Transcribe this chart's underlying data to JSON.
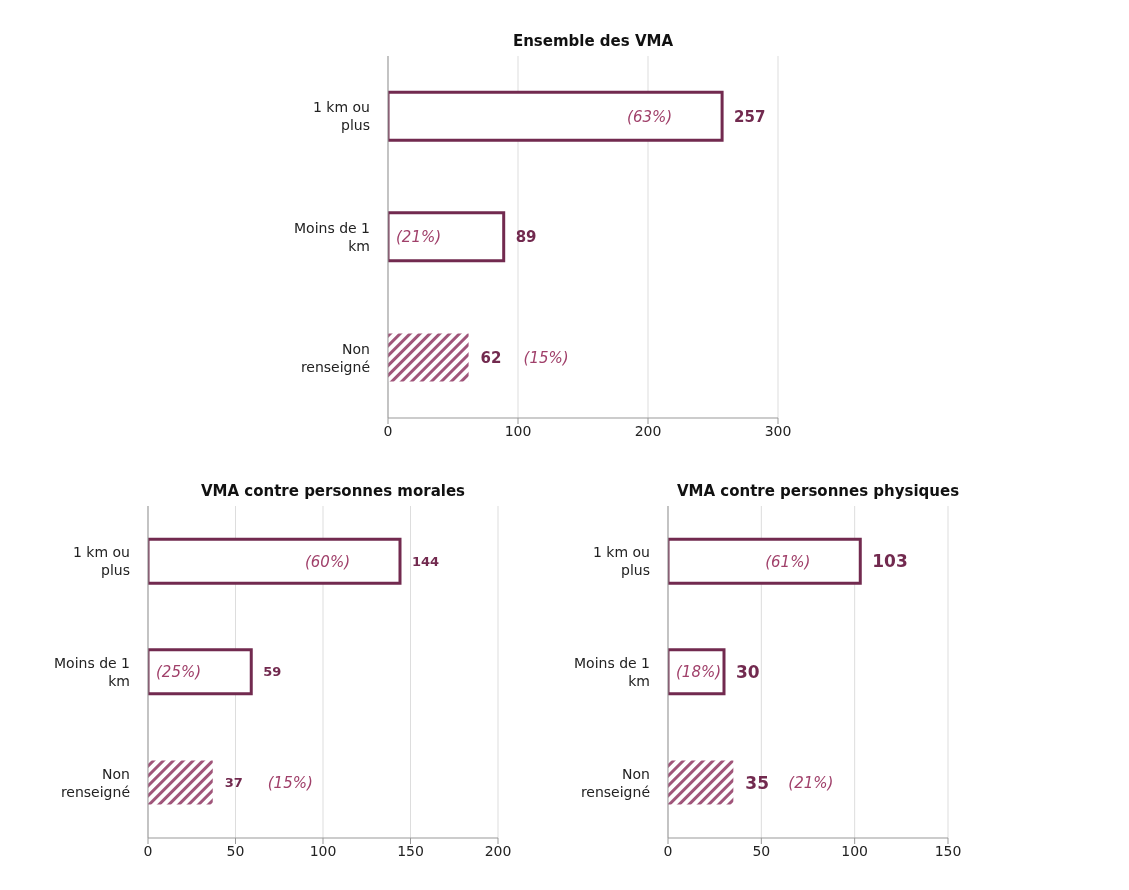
{
  "chart_data": [
    {
      "type": "bar",
      "orientation": "horizontal",
      "title": "Ensemble des VMA",
      "categories": [
        "1 km ou plus",
        "Moins de 1 km",
        "Non renseigné"
      ],
      "values": [
        257,
        89,
        62
      ],
      "color": "#722a4f",
      "colors": [
        "#722a4f",
        "#722a4f",
        "#a0557a"
      ],
      "data_labels": true,
      "xlim": [
        0,
        300
      ],
      "xticks": [
        0,
        100,
        200,
        300
      ],
      "grid": "x",
      "legend": false,
      "annotations": [
        "(63%)",
        "(21%)",
        "(15%)"
      ]
    },
    {
      "type": "bar",
      "orientation": "horizontal",
      "title": "VMA contre personnes morales",
      "categories": [
        "1 km ou plus",
        "Moins de 1 km",
        "Non renseigné"
      ],
      "values": [
        144,
        59,
        37
      ],
      "color": "#722a4f",
      "colors": [
        "#722a4f",
        "#722a4f",
        "#a0557a"
      ],
      "data_labels": true,
      "xlim": [
        0,
        200
      ],
      "xticks": [
        0,
        50,
        100,
        150,
        200
      ],
      "grid": "x",
      "legend": false,
      "annotations": [
        "(60%)",
        "(25%)",
        "(15%)"
      ]
    },
    {
      "type": "bar",
      "orientation": "horizontal",
      "title": "VMA contre personnes physiques",
      "categories": [
        "1 km ou plus",
        "Moins de 1 km",
        "Non renseigné"
      ],
      "values": [
        103,
        30,
        35
      ],
      "color": "#722a4f",
      "colors": [
        "#722a4f",
        "#722a4f",
        "#a0557a"
      ],
      "data_labels": true,
      "xlim": [
        0,
        150
      ],
      "xticks": [
        0,
        50,
        100,
        150
      ],
      "grid": "x",
      "legend": false,
      "annotations": [
        "(61%)",
        "(18%)",
        "(21%)"
      ]
    }
  ]
}
